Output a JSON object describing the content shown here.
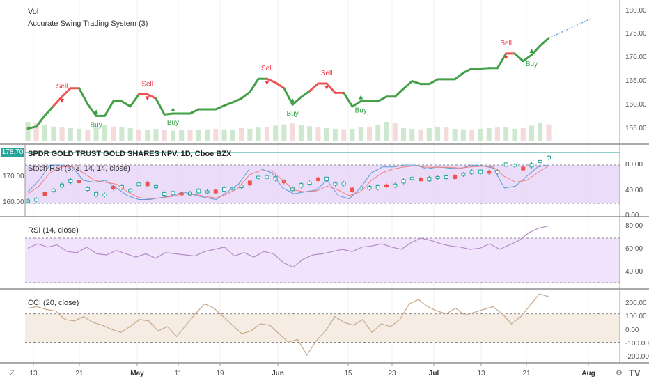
{
  "colors": {
    "up": "#43a047",
    "down": "#ef5350",
    "sell": "#f23645",
    "buy": "#2e9e44",
    "accent": "#26a69a",
    "stoch_k": "#5b9bd5",
    "stoch_d": "#f28080",
    "rsi": "#b48ac7",
    "cci": "#c8a889",
    "forecast": "#5b8fe8"
  },
  "price_badge": "178.70",
  "panels": {
    "main": {
      "label_vol": "Vol",
      "label_study": "Accurate Swing Trading System (3)",
      "y_ticks": [
        "180.00",
        "175.00",
        "170.00",
        "165.00",
        "160.00",
        "155.00"
      ],
      "signals": [
        {
          "label": "Sell",
          "type": "sell"
        },
        {
          "label": "Buy",
          "type": "buy"
        },
        {
          "label": "Sell",
          "type": "sell"
        },
        {
          "label": "Buy",
          "type": "buy"
        },
        {
          "label": "Sell",
          "type": "sell"
        },
        {
          "label": "Buy",
          "type": "buy"
        },
        {
          "label": "Sell",
          "type": "sell"
        },
        {
          "label": "Buy",
          "type": "buy"
        },
        {
          "label": "Sell",
          "type": "sell"
        },
        {
          "label": "Buy",
          "type": "buy"
        }
      ]
    },
    "stoch": {
      "symbol_title": "SPDR GOLD TRUST GOLD SHARES NPV, 1D, Cboe BZX",
      "label": "Stoch RSI (3, 3, 14, 14, close)",
      "y_ticks": [
        "80.00",
        "40.00",
        "0.00"
      ],
      "left_ticks": [
        "170.00",
        "160.00"
      ]
    },
    "rsi": {
      "label": "RSI (14, close)",
      "y_ticks": [
        "80.00",
        "60.00",
        "40.00"
      ]
    },
    "cci": {
      "label": "CCI (20, close)",
      "y_ticks": [
        "200.00",
        "100.00",
        "0.00",
        "-100.00",
        "-200.00"
      ]
    }
  },
  "x_axis": {
    "ticks": [
      "13",
      "21",
      "May",
      "11",
      "19",
      "Jun",
      "15",
      "23",
      "Jul",
      "13",
      "21",
      "Aug"
    ],
    "strong": [
      "May",
      "Jun",
      "Jul",
      "Aug"
    ]
  },
  "corner": {
    "zoom": "Z",
    "settings": "⚙",
    "logo": "TV"
  },
  "chart_data": [
    {
      "type": "line",
      "title": "Accurate Swing Trading System (3)",
      "ylim": [
        152,
        181
      ],
      "values": [
        154.6,
        155,
        157.4,
        159.4,
        161.4,
        163.2,
        163.2,
        159.8,
        157.3,
        157.3,
        160.4,
        160.4,
        159.3,
        161.9,
        161.9,
        161,
        157.6,
        157.8,
        157.8,
        157.8,
        158.7,
        158.7,
        158.7,
        159.5,
        160.2,
        161,
        162.4,
        165.2,
        165.2,
        164.4,
        163.2,
        159.7,
        161.3,
        162.6,
        164.2,
        164.2,
        162.2,
        162.2,
        159.3,
        160.4,
        160.4,
        160.4,
        161.4,
        161.4,
        163.1,
        164.7,
        164.1,
        164.1,
        165.1,
        165.1,
        165.1,
        166.5,
        167.4,
        167.4,
        167.5,
        167.5,
        170.6,
        170.6,
        169,
        170.3,
        172.3,
        173.9
      ],
      "forecast": [
        173.9,
        178
      ]
    },
    {
      "type": "bar",
      "title": "Vol",
      "ylim": [
        0,
        100
      ],
      "values": [
        60,
        55,
        50,
        45,
        42,
        40,
        38,
        35,
        42,
        50,
        45,
        44,
        40,
        36,
        35,
        38,
        34,
        32,
        33,
        35,
        34,
        36,
        38,
        36,
        35,
        40,
        38,
        42,
        44,
        48,
        52,
        55,
        50,
        46,
        44,
        40,
        38,
        36,
        38,
        42,
        45,
        50,
        60,
        55,
        40,
        38,
        36,
        40,
        45,
        42,
        38,
        36,
        34,
        38,
        40,
        42,
        44,
        38,
        40,
        48,
        58,
        52
      ],
      "colors": "alternating"
    },
    {
      "type": "line",
      "title": "Stoch RSI (3, 3, 14, 14, close)",
      "ylim": [
        0,
        100
      ],
      "series": [
        {
          "name": "K",
          "values": [
            30,
            60,
            100,
            100,
            95,
            60,
            55,
            60,
            40,
            20,
            10,
            10,
            15,
            20,
            30,
            22,
            15,
            10,
            30,
            50,
            90,
            90,
            80,
            40,
            25,
            30,
            35,
            60,
            20,
            12,
            40,
            80,
            95,
            95,
            100,
            100,
            90,
            95,
            92,
            90,
            100,
            98,
            92,
            40,
            45,
            70,
            95,
            100
          ]
        },
        {
          "name": "D",
          "values": [
            25,
            45,
            80,
            95,
            96,
            80,
            60,
            55,
            50,
            30,
            15,
            12,
            14,
            18,
            25,
            24,
            18,
            14,
            25,
            40,
            75,
            85,
            85,
            60,
            35,
            30,
            32,
            45,
            35,
            20,
            30,
            60,
            80,
            90,
            95,
            98,
            94,
            94,
            94,
            92,
            95,
            97,
            95,
            70,
            55,
            60,
            80,
            98
          ]
        }
      ]
    },
    {
      "type": "line",
      "title": "RSI (14, close)",
      "ylim": [
        30,
        85
      ],
      "values": [
        61,
        65,
        62,
        64,
        58,
        57,
        62,
        56,
        55,
        59,
        56,
        53,
        56,
        52,
        57,
        56,
        55,
        54,
        58,
        60,
        62,
        54,
        57,
        53,
        58,
        56,
        48,
        44,
        51,
        55,
        56,
        58,
        60,
        58,
        62,
        63,
        65,
        62,
        60,
        66,
        70,
        68,
        65,
        63,
        62,
        60,
        61,
        65,
        60,
        64,
        68,
        75,
        79,
        81
      ],
      "bands": [
        70,
        30
      ]
    },
    {
      "type": "line",
      "title": "CCI (20, close)",
      "ylim": [
        -220,
        250
      ],
      "values": [
        140,
        150,
        130,
        120,
        60,
        50,
        80,
        40,
        20,
        -10,
        -30,
        10,
        60,
        50,
        -20,
        10,
        -60,
        20,
        100,
        170,
        140,
        80,
        20,
        -40,
        -20,
        30,
        20,
        -40,
        -100,
        -80,
        -190,
        -90,
        -20,
        80,
        40,
        20,
        60,
        -30,
        30,
        10,
        60,
        170,
        200,
        150,
        120,
        100,
        140,
        90,
        110,
        130,
        150,
        100,
        30,
        80,
        160,
        240,
        220
      ],
      "bands": [
        100,
        -100
      ]
    }
  ]
}
